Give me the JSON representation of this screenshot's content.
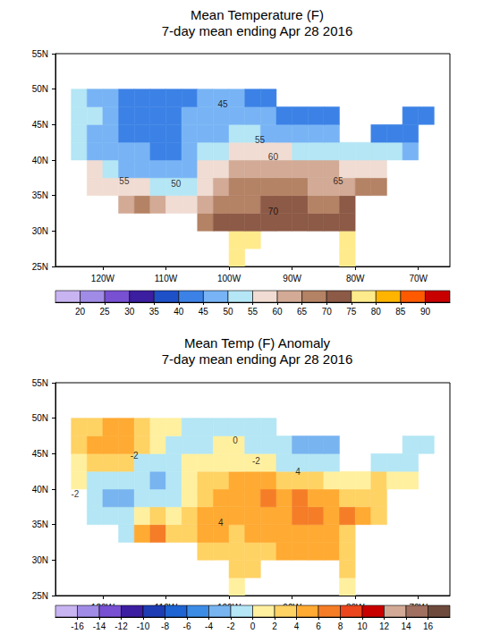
{
  "chart_data": [
    {
      "type": "heatmap",
      "title": "Mean Temperature (F)",
      "subtitle": "7-day mean ending Apr 28 2016",
      "xlim": [
        -127.5,
        -65
      ],
      "xticks": [
        {
          "value": -120,
          "label": "120W"
        },
        {
          "value": -110,
          "label": "110W"
        },
        {
          "value": -100,
          "label": "100W"
        },
        {
          "value": -90,
          "label": "90W"
        },
        {
          "value": -80,
          "label": "80W"
        },
        {
          "value": -70,
          "label": "70W"
        }
      ],
      "ylim": [
        25,
        55
      ],
      "yticks": [
        {
          "value": 25,
          "label": "25N"
        },
        {
          "value": 30,
          "label": "30N"
        },
        {
          "value": 35,
          "label": "35N"
        },
        {
          "value": 40,
          "label": "40N"
        },
        {
          "value": 45,
          "label": "45N"
        },
        {
          "value": 50,
          "label": "50N"
        },
        {
          "value": 55,
          "label": "55N"
        }
      ],
      "cells": {
        "lon": [
          -123.75,
          -121.25,
          -118.75,
          -116.25,
          -113.75,
          -111.25,
          -108.75,
          -106.25,
          -103.75,
          -101.25,
          -98.75,
          -96.25,
          -93.75,
          -91.25,
          -88.75,
          -86.25,
          -83.75,
          -81.25,
          -78.75,
          -76.25,
          -73.75,
          -71.25,
          -68.75
        ],
        "lat": [
          26.25,
          28.75,
          31.25,
          33.75,
          36.25,
          38.75,
          41.25,
          43.75,
          46.25,
          48.75
        ],
        "values": [
          [
            null,
            null,
            null,
            null,
            null,
            null,
            null,
            null,
            null,
            null,
            78,
            null,
            null,
            null,
            null,
            null,
            null,
            77,
            null,
            null,
            null,
            null,
            null
          ],
          [
            null,
            null,
            null,
            null,
            null,
            null,
            null,
            null,
            null,
            null,
            75,
            76,
            null,
            null,
            null,
            null,
            null,
            75,
            null,
            null,
            null,
            null,
            null
          ],
          [
            null,
            null,
            null,
            null,
            null,
            null,
            null,
            null,
            66,
            70,
            72,
            73,
            72,
            71,
            72,
            72,
            72,
            72,
            null,
            null,
            null,
            null,
            null
          ],
          [
            null,
            null,
            null,
            62,
            66,
            63,
            56,
            58,
            63,
            66,
            68,
            69,
            70,
            70,
            70,
            68,
            67,
            70,
            null,
            null,
            null,
            null,
            null
          ],
          [
            null,
            57,
            56,
            55,
            55,
            52,
            50,
            52,
            57,
            62,
            65,
            66,
            67,
            67,
            66,
            64,
            64,
            62,
            65,
            65,
            null,
            null,
            null
          ],
          [
            null,
            56,
            50,
            48,
            49,
            47,
            46,
            47,
            55,
            58,
            62,
            63,
            63,
            62,
            62,
            61,
            60,
            57,
            58,
            59,
            null,
            null,
            null
          ],
          [
            53,
            48,
            46,
            45,
            46,
            44,
            43,
            46,
            50,
            53,
            56,
            57,
            56,
            55,
            54,
            52,
            50,
            50,
            50,
            52,
            50,
            49,
            null
          ],
          [
            52,
            47,
            45,
            44,
            42,
            40,
            41,
            45,
            47,
            49,
            50,
            50,
            49,
            48,
            46,
            46,
            45,
            null,
            null,
            44,
            43,
            44,
            null
          ],
          [
            52,
            50,
            48,
            44,
            41,
            42,
            44,
            45,
            46,
            47,
            47,
            47,
            46,
            44,
            43,
            42,
            42,
            null,
            null,
            null,
            null,
            42,
            40
          ],
          [
            51,
            48,
            47,
            44,
            42,
            41,
            43,
            44,
            45,
            45,
            45,
            44,
            43,
            null,
            null,
            null,
            null,
            null,
            null,
            null,
            null,
            null,
            null
          ]
        ]
      },
      "colorbar": {
        "range": [
          15,
          95
        ],
        "ticks": [
          20,
          25,
          30,
          35,
          40,
          45,
          50,
          55,
          60,
          65,
          70,
          75,
          80,
          85,
          90
        ],
        "colors": [
          "#c8b4f0",
          "#a08ce6",
          "#7850d2",
          "#3c1ea0",
          "#1e50c8",
          "#3c82e6",
          "#78b4f5",
          "#b4e6f5",
          "#f0dcd2",
          "#d2aa96",
          "#b48264",
          "#8c5a46",
          "#ffeb8c",
          "#ffb400",
          "#ff5a00",
          "#c80000"
        ]
      },
      "annotations": [
        {
          "text": "45",
          "x": -101,
          "y": 47.9
        },
        {
          "text": "55",
          "x": -95.1,
          "y": 42.8
        },
        {
          "text": "60",
          "x": -93,
          "y": 40.5
        },
        {
          "text": "65",
          "x": -82.7,
          "y": 37.1
        },
        {
          "text": "70",
          "x": -93,
          "y": 32.8
        },
        {
          "text": "55",
          "x": -116.6,
          "y": 37.1
        },
        {
          "text": "50",
          "x": -108.4,
          "y": 36.7
        }
      ]
    },
    {
      "type": "heatmap",
      "title": "Mean Temp (F) Anomaly",
      "subtitle": "7-day mean ending Apr 28 2016",
      "xlim": [
        -127.5,
        -65
      ],
      "xticks": [
        {
          "value": -120,
          "label": "120W"
        },
        {
          "value": -110,
          "label": "110W"
        },
        {
          "value": -100,
          "label": "100W"
        },
        {
          "value": -90,
          "label": "90W"
        },
        {
          "value": -80,
          "label": "80W"
        },
        {
          "value": -70,
          "label": "70W"
        }
      ],
      "ylim": [
        25,
        55
      ],
      "yticks": [
        {
          "value": 25,
          "label": "25N"
        },
        {
          "value": 30,
          "label": "30N"
        },
        {
          "value": 35,
          "label": "35N"
        },
        {
          "value": 40,
          "label": "40N"
        },
        {
          "value": 45,
          "label": "45N"
        },
        {
          "value": 50,
          "label": "50N"
        },
        {
          "value": 55,
          "label": "55N"
        }
      ],
      "cells": {
        "lon": [
          -123.75,
          -121.25,
          -118.75,
          -116.25,
          -113.75,
          -111.25,
          -108.75,
          -106.25,
          -103.75,
          -101.25,
          -98.75,
          -96.25,
          -93.75,
          -91.25,
          -88.75,
          -86.25,
          -83.75,
          -81.25,
          -78.75,
          -76.25,
          -73.75,
          -71.25,
          -68.75
        ],
        "lat": [
          26.25,
          28.75,
          31.25,
          33.75,
          36.25,
          38.75,
          41.25,
          43.75,
          46.25,
          48.75
        ],
        "values": [
          [
            null,
            null,
            null,
            null,
            null,
            null,
            null,
            null,
            null,
            null,
            1,
            null,
            null,
            null,
            null,
            null,
            null,
            0,
            null,
            null,
            null,
            null,
            null
          ],
          [
            null,
            null,
            null,
            null,
            null,
            null,
            null,
            null,
            null,
            null,
            2,
            2,
            null,
            null,
            null,
            null,
            null,
            2,
            null,
            null,
            null,
            null,
            null
          ],
          [
            null,
            null,
            null,
            null,
            null,
            null,
            null,
            null,
            3,
            3,
            3,
            3,
            3,
            4,
            4,
            4,
            4,
            3,
            null,
            null,
            null,
            null,
            null
          ],
          [
            null,
            null,
            null,
            -1,
            5,
            7,
            3,
            3,
            4,
            4,
            3,
            4,
            4,
            4,
            4,
            4,
            4,
            3,
            null,
            null,
            null,
            null,
            null
          ],
          [
            null,
            -2,
            -2,
            -1,
            1,
            2,
            1,
            3,
            4,
            5,
            5,
            5,
            5,
            5,
            6,
            6,
            5,
            6,
            5,
            3,
            null,
            null,
            null
          ],
          [
            null,
            -2,
            -3,
            -3,
            -2,
            -2,
            -1,
            1,
            3,
            4,
            5,
            5,
            6,
            5,
            6,
            5,
            4,
            3,
            3,
            2,
            null,
            null,
            null
          ],
          [
            0,
            -1,
            -2,
            -2,
            -1,
            -3,
            -2,
            1,
            2,
            3,
            4,
            4,
            4,
            3,
            3,
            2,
            1,
            1,
            1,
            2,
            1,
            0,
            null
          ],
          [
            1,
            2,
            3,
            2,
            -1,
            -2,
            -1,
            0,
            1,
            1,
            1,
            1,
            0,
            -1,
            -2,
            -2,
            -2,
            null,
            null,
            -1,
            -1,
            -2,
            null
          ],
          [
            2,
            4,
            5,
            4,
            2,
            0,
            -1,
            -1,
            -1,
            0,
            0,
            -1,
            -1,
            -2,
            -3,
            -3,
            -3,
            null,
            null,
            null,
            null,
            -2,
            -2
          ],
          [
            2,
            3,
            5,
            5,
            3,
            1,
            0,
            -1,
            -1,
            -1,
            -1,
            -1,
            -2,
            null,
            null,
            null,
            null,
            null,
            null,
            null,
            null,
            null,
            null
          ]
        ]
      },
      "colorbar": {
        "range": [
          -18,
          18
        ],
        "ticks": [
          -16,
          -14,
          -12,
          -10,
          -8,
          -6,
          -4,
          -2,
          0,
          2,
          4,
          6,
          8,
          10,
          12,
          14,
          16
        ],
        "colors": [
          "#c8b4f0",
          "#a08ce6",
          "#7850d2",
          "#3c1ea0",
          "#1e3cb4",
          "#1e64d2",
          "#3c8ce6",
          "#78b4f0",
          "#b4e6f5",
          "#fff0a0",
          "#ffd264",
          "#ffaa32",
          "#f57d28",
          "#eb461e",
          "#c80000",
          "#d2aa96",
          "#a07060",
          "#6e4a3c"
        ]
      },
      "annotations": [
        {
          "text": "-2",
          "x": -115,
          "y": 44.7
        },
        {
          "text": "0",
          "x": -99,
          "y": 46.9
        },
        {
          "text": "-2",
          "x": -95.7,
          "y": 44
        },
        {
          "text": "4",
          "x": -89.1,
          "y": 42.5
        },
        {
          "text": "4",
          "x": -101.3,
          "y": 35.3
        },
        {
          "text": "-2",
          "x": -124.4,
          "y": 39.3
        }
      ]
    }
  ]
}
